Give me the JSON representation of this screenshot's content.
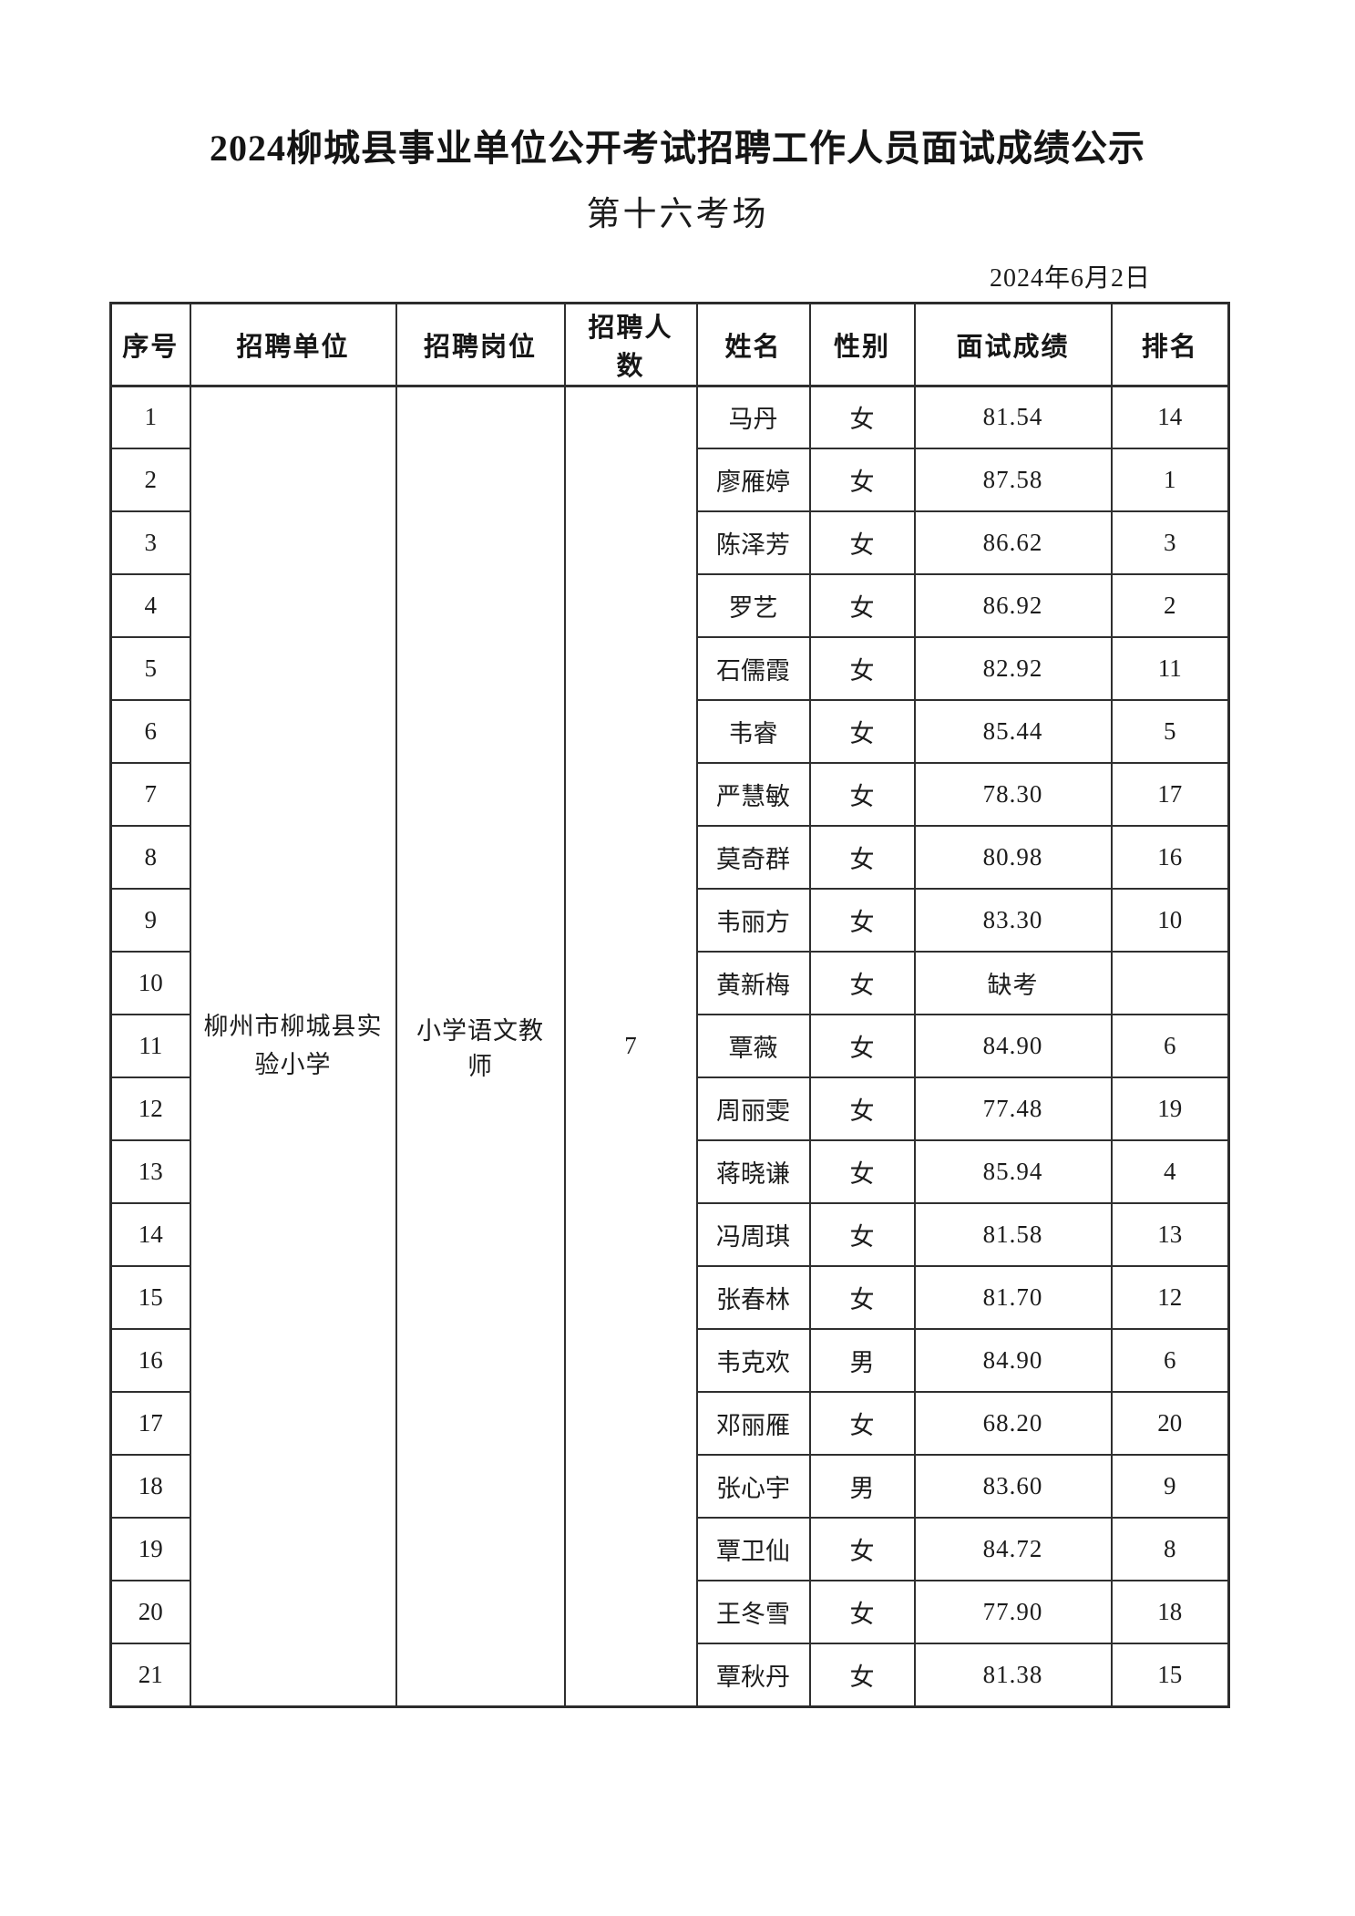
{
  "doc": {
    "title": "2024柳城县事业单位公开考试招聘工作人员面试成绩公示",
    "venue": "第十六考场",
    "date": "2024年6月2日"
  },
  "colors": {
    "paper": "#ffffff",
    "ink": "#1c1c1c",
    "table_border": "#2f2f2f"
  },
  "table": {
    "headers": [
      "序号",
      "招聘单位",
      "招聘岗位",
      "招聘人数",
      "姓名",
      "性别",
      "面试成绩",
      "排名"
    ],
    "merged": {
      "unit": "柳州市柳城县实验小学",
      "position": "小学语文教师",
      "headcount": "7"
    },
    "rows": [
      {
        "no": "1",
        "name": "马丹",
        "gender": "女",
        "score": "81.54",
        "rank": "14"
      },
      {
        "no": "2",
        "name": "廖雁婷",
        "gender": "女",
        "score": "87.58",
        "rank": "1"
      },
      {
        "no": "3",
        "name": "陈泽芳",
        "gender": "女",
        "score": "86.62",
        "rank": "3"
      },
      {
        "no": "4",
        "name": "罗艺",
        "gender": "女",
        "score": "86.92",
        "rank": "2"
      },
      {
        "no": "5",
        "name": "石儒霞",
        "gender": "女",
        "score": "82.92",
        "rank": "11"
      },
      {
        "no": "6",
        "name": "韦睿",
        "gender": "女",
        "score": "85.44",
        "rank": "5"
      },
      {
        "no": "7",
        "name": "严慧敏",
        "gender": "女",
        "score": "78.30",
        "rank": "17"
      },
      {
        "no": "8",
        "name": "莫奇群",
        "gender": "女",
        "score": "80.98",
        "rank": "16"
      },
      {
        "no": "9",
        "name": "韦丽方",
        "gender": "女",
        "score": "83.30",
        "rank": "10"
      },
      {
        "no": "10",
        "name": "黄新梅",
        "gender": "女",
        "score": "缺考",
        "rank": ""
      },
      {
        "no": "11",
        "name": "覃薇",
        "gender": "女",
        "score": "84.90",
        "rank": "6"
      },
      {
        "no": "12",
        "name": "周丽雯",
        "gender": "女",
        "score": "77.48",
        "rank": "19"
      },
      {
        "no": "13",
        "name": "蒋晓谦",
        "gender": "女",
        "score": "85.94",
        "rank": "4"
      },
      {
        "no": "14",
        "name": "冯周琪",
        "gender": "女",
        "score": "81.58",
        "rank": "13"
      },
      {
        "no": "15",
        "name": "张春林",
        "gender": "女",
        "score": "81.70",
        "rank": "12"
      },
      {
        "no": "16",
        "name": "韦克欢",
        "gender": "男",
        "score": "84.90",
        "rank": "6"
      },
      {
        "no": "17",
        "name": "邓丽雁",
        "gender": "女",
        "score": "68.20",
        "rank": "20"
      },
      {
        "no": "18",
        "name": "张心宇",
        "gender": "男",
        "score": "83.60",
        "rank": "9"
      },
      {
        "no": "19",
        "name": "覃卫仙",
        "gender": "女",
        "score": "84.72",
        "rank": "8"
      },
      {
        "no": "20",
        "name": "王冬雪",
        "gender": "女",
        "score": "77.90",
        "rank": "18"
      },
      {
        "no": "21",
        "name": "覃秋丹",
        "gender": "女",
        "score": "81.38",
        "rank": "15"
      }
    ]
  }
}
